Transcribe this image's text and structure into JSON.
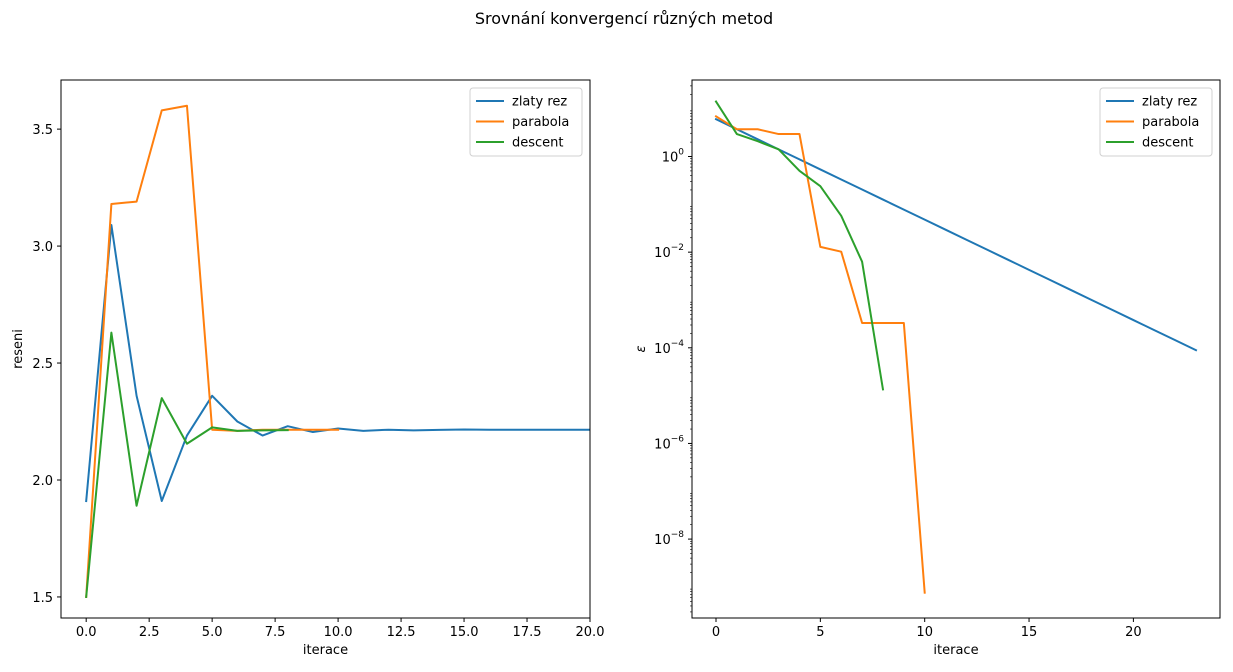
{
  "chart_data": {
    "suptitle": "Srovnání konvergencí různých metod",
    "colors": {
      "zlaty_rez": "#1f77b4",
      "parabola": "#ff7f0e",
      "descent": "#2ca02c"
    },
    "left": {
      "type": "line",
      "xlabel": "iterace",
      "ylabel": "reseni",
      "xlim": [
        -1,
        20
      ],
      "ylim": [
        1.41,
        3.71
      ],
      "xticks": [
        0,
        2.5,
        5,
        7.5,
        10,
        12.5,
        15,
        17.5,
        20
      ],
      "xtick_labels": [
        "0.0",
        "2.5",
        "5.0",
        "7.5",
        "10.0",
        "12.5",
        "15.0",
        "17.5",
        "20.0"
      ],
      "yticks": [
        1.5,
        2.0,
        2.5,
        3.0,
        3.5
      ],
      "ytick_labels": [
        "1.5",
        "2.0",
        "2.5",
        "3.0",
        "3.5"
      ],
      "legend": [
        "zlaty rez",
        "parabola",
        "descent"
      ],
      "series": [
        {
          "name": "zlaty rez",
          "color_key": "zlaty_rez",
          "x": [
            0,
            1,
            2,
            3,
            4,
            5,
            6,
            7,
            8,
            9,
            10,
            11,
            12,
            13,
            14,
            15,
            16,
            17,
            18,
            19,
            20,
            21,
            22,
            23
          ],
          "y": [
            1.91,
            3.09,
            2.36,
            1.91,
            2.19,
            2.36,
            2.25,
            2.19,
            2.23,
            2.205,
            2.22,
            2.21,
            2.215,
            2.212,
            2.214,
            2.216,
            2.215,
            2.215,
            2.215,
            2.215,
            2.215,
            2.215,
            2.215,
            2.215
          ]
        },
        {
          "name": "parabola",
          "color_key": "parabola",
          "x": [
            0,
            1,
            2,
            3,
            4,
            5,
            6,
            7,
            8,
            9,
            10
          ],
          "y": [
            1.5,
            3.18,
            3.19,
            3.58,
            3.6,
            2.215,
            2.21,
            2.215,
            2.215,
            2.215,
            2.215
          ]
        },
        {
          "name": "descent",
          "color_key": "descent",
          "x": [
            0,
            1,
            2,
            3,
            4,
            5,
            6,
            7,
            8
          ],
          "y": [
            1.5,
            2.63,
            1.89,
            2.35,
            2.155,
            2.225,
            2.21,
            2.212,
            2.213
          ]
        }
      ]
    },
    "right": {
      "type": "line",
      "yscale": "log",
      "xlabel": "iterace",
      "ylabel": "ε",
      "xlim": [
        -1.15,
        24.15
      ],
      "ylim_log10": [
        -9.65,
        1.6
      ],
      "xticks": [
        0,
        5,
        10,
        15,
        20
      ],
      "xtick_labels": [
        "0",
        "5",
        "10",
        "15",
        "20"
      ],
      "yticks_log10": [
        0,
        -2,
        -4,
        -6,
        -8
      ],
      "ytick_labels": [
        {
          "base": "10",
          "exp": "0"
        },
        {
          "base": "10",
          "exp": "−2"
        },
        {
          "base": "10",
          "exp": "−4"
        },
        {
          "base": "10",
          "exp": "−6"
        },
        {
          "base": "10",
          "exp": "−8"
        }
      ],
      "legend": [
        "zlaty rez",
        "parabola",
        "descent"
      ],
      "series": [
        {
          "name": "zlaty rez",
          "color_key": "zlaty_rez",
          "x": [
            0,
            1,
            2,
            3,
            4,
            5,
            6,
            7,
            8,
            9,
            10,
            11,
            12,
            13,
            14,
            15,
            16,
            17,
            18,
            19,
            20,
            21,
            22,
            23
          ],
          "log10_y": [
            0.78,
            0.57,
            0.36,
            0.15,
            -0.06,
            -0.27,
            -0.48,
            -0.69,
            -0.9,
            -1.11,
            -1.32,
            -1.53,
            -1.74,
            -1.95,
            -2.16,
            -2.37,
            -2.58,
            -2.79,
            -3.0,
            -3.21,
            -3.42,
            -3.63,
            -3.84,
            -4.05
          ]
        },
        {
          "name": "parabola",
          "color_key": "parabola",
          "x": [
            0,
            1,
            2,
            3,
            4,
            5,
            6,
            7,
            8,
            9,
            10
          ],
          "log10_y": [
            0.84,
            0.57,
            0.57,
            0.47,
            0.47,
            -1.89,
            -1.99,
            -3.48,
            -3.48,
            -3.48,
            -9.12
          ]
        },
        {
          "name": "descent",
          "color_key": "descent",
          "x": [
            0,
            1,
            2,
            3,
            4,
            5,
            6,
            7,
            8
          ],
          "log10_y": [
            1.15,
            0.47,
            0.32,
            0.15,
            -0.3,
            -0.62,
            -1.24,
            -2.2,
            -4.87
          ]
        }
      ]
    }
  }
}
